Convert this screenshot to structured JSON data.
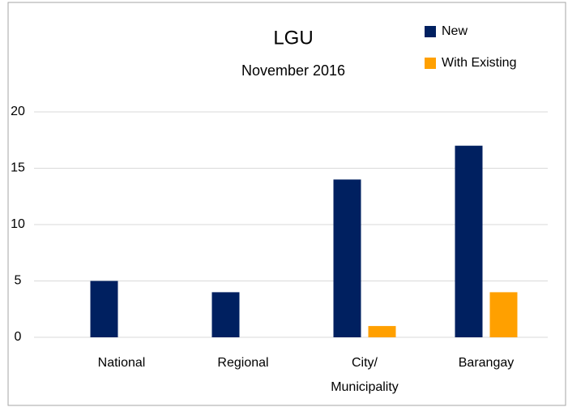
{
  "chart_data": {
    "type": "bar",
    "title": "LGU",
    "subtitle": "November 2016",
    "categories": [
      "National",
      "Regional",
      "City/ Municipality",
      "Barangay"
    ],
    "series": [
      {
        "name": "New",
        "color": "#002060",
        "values": [
          5,
          4,
          14,
          17
        ]
      },
      {
        "name": "With Existing",
        "color": "#ffa000",
        "values": [
          0,
          0,
          1,
          4
        ]
      }
    ],
    "ylim": [
      0,
      20
    ],
    "yticks": [
      0,
      5,
      10,
      15,
      20
    ],
    "grid": true,
    "legend": "top-right"
  }
}
